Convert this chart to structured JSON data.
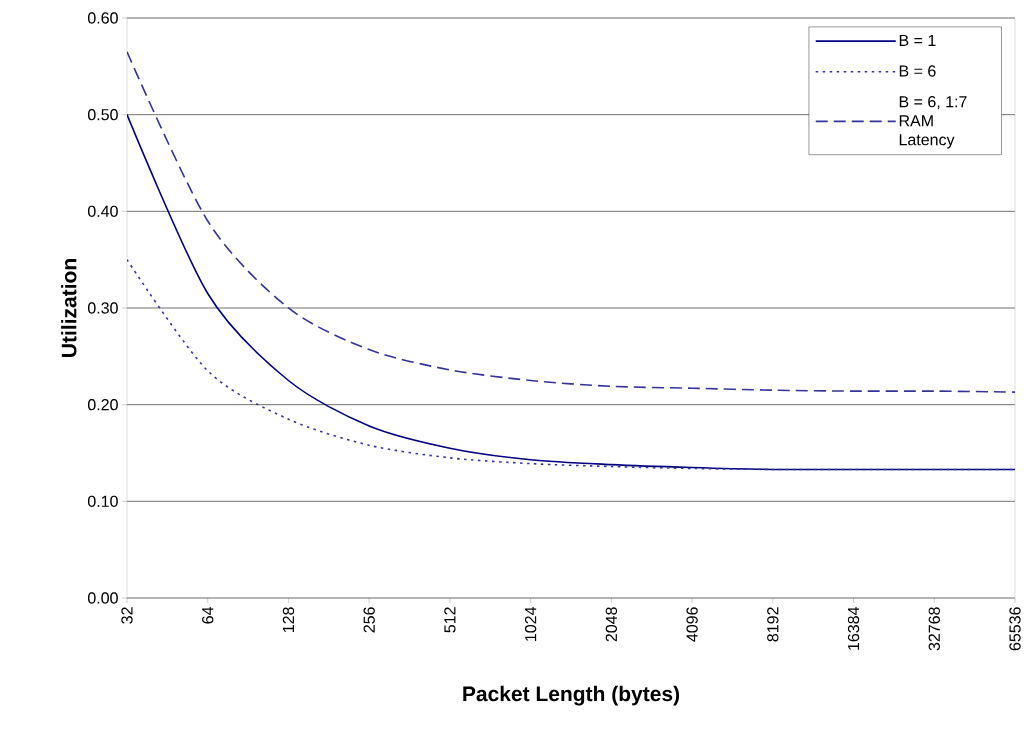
{
  "chart_data": {
    "type": "line",
    "xlabel": "Packet Length (bytes)",
    "ylabel": "Utilization",
    "categories": [
      "32",
      "64",
      "128",
      "256",
      "512",
      "1024",
      "2048",
      "4096",
      "8192",
      "16384",
      "32768",
      "65536"
    ],
    "series": [
      {
        "name": "B = 1",
        "color": "#000080",
        "line_style": "solid",
        "values": [
          0.5,
          0.315,
          0.225,
          0.178,
          0.155,
          0.143,
          0.138,
          0.135,
          0.133,
          0.133,
          0.133,
          0.133
        ]
      },
      {
        "name": "B = 6",
        "color": "#333399",
        "line_style": "dotted",
        "values": [
          0.35,
          0.235,
          0.185,
          0.158,
          0.145,
          0.139,
          0.136,
          0.134,
          0.133,
          0.133,
          0.133,
          0.133
        ]
      },
      {
        "name": "B = 6, 1:7 RAM Latency",
        "color": "#333399",
        "line_style": "dashed",
        "values": [
          0.565,
          0.39,
          0.3,
          0.257,
          0.236,
          0.225,
          0.219,
          0.217,
          0.215,
          0.214,
          0.214,
          0.213
        ]
      }
    ],
    "ylim": [
      0,
      0.6
    ],
    "yticks": [
      {
        "value": 0,
        "label": "0.00"
      },
      {
        "value": 0.1,
        "label": "0.10"
      },
      {
        "value": 0.2,
        "label": "0.20"
      },
      {
        "value": 0.3,
        "label": "0.30"
      },
      {
        "value": 0.4,
        "label": "0.40"
      },
      {
        "value": 0.5,
        "label": "0.50"
      },
      {
        "value": 0.6,
        "label": "0.60"
      }
    ],
    "grid": "y",
    "legend": "top right",
    "marker": "none"
  }
}
